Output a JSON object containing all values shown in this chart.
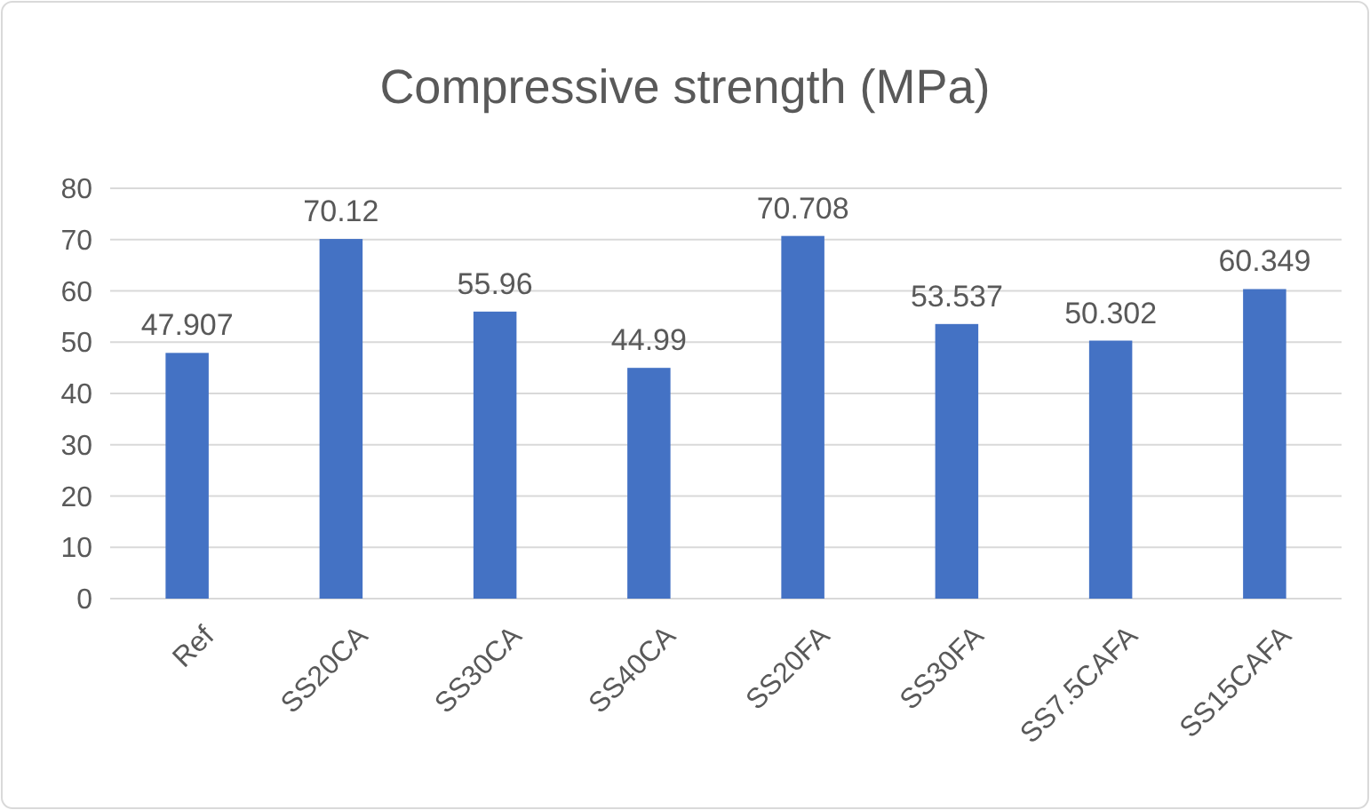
{
  "chart_data": {
    "type": "bar",
    "title": "Compressive strength (MPa)",
    "categories": [
      "Ref",
      "SS20CA",
      "SS30CA",
      "SS40CA",
      "SS20FA",
      "SS30FA",
      "SS7.5CAFA",
      "SS15CAFA"
    ],
    "values": [
      47.907,
      70.12,
      55.96,
      44.99,
      70.708,
      53.537,
      50.302,
      60.349
    ],
    "color": "#4472c4",
    "ylim": [
      0,
      80
    ],
    "yticks": [
      0,
      10,
      20,
      30,
      40,
      50,
      60,
      70,
      80
    ],
    "grid": "y",
    "data_labels": true
  }
}
